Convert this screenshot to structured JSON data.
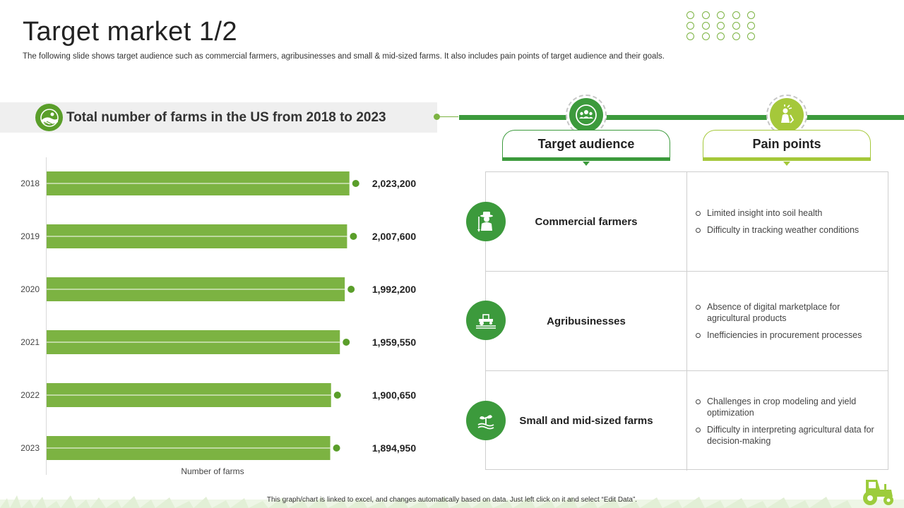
{
  "page": {
    "title": "Target market 1/2",
    "subtitle": "The following slide shows target audience such as commercial farmers, agribusinesses and small & mid-sized farms. It also includes pain points of target audience and their goals.",
    "footnote": "This graph/chart is linked to excel, and changes automatically based on data. Just left click on it and select “Edit Data”."
  },
  "colors": {
    "bar": "#7cb342",
    "bar_dot": "#5a9e2a",
    "dark_green": "#3c9a3c",
    "light_green": "#a5c83a"
  },
  "chart_header": {
    "title": "Total number of farms in the US from 2018 to 2023",
    "icon": "farm-landscape-icon"
  },
  "chart_data": {
    "type": "bar",
    "orientation": "horizontal",
    "title": "Total number of farms in the US from 2018 to 2023",
    "categories": [
      "2018",
      "2019",
      "2020",
      "2021",
      "2022",
      "2023"
    ],
    "values": [
      2023200,
      2007600,
      1992200,
      1959550,
      1900650,
      1894950
    ],
    "value_labels": [
      "2,023,200",
      "2,007,600",
      "1,992,200",
      "1,959,550",
      "1,900,650",
      "1,894,950"
    ],
    "xlabel": "Number of farms",
    "ylabel": "",
    "xlim": [
      0,
      2100000
    ],
    "grid": false,
    "legend": "none"
  },
  "tabs": {
    "target_audience": "Target audience",
    "pain_points": "Pain points"
  },
  "audience_rows": [
    {
      "name": "Commercial farmers",
      "icon": "farmer-icon",
      "pain_points": [
        "Limited insight into soil health",
        "Difficulty in tracking weather conditions"
      ]
    },
    {
      "name": "Agribusinesses",
      "icon": "tractor-icon",
      "pain_points": [
        "Absence of digital marketplace for agricultural products",
        "Inefficiencies in procurement processes"
      ]
    },
    {
      "name": "Small and mid-sized farms",
      "icon": "sprout-icon",
      "pain_points": [
        "Challenges in crop modeling and yield optimization",
        "Difficulty in interpreting agricultural data for decision-making"
      ]
    }
  ]
}
